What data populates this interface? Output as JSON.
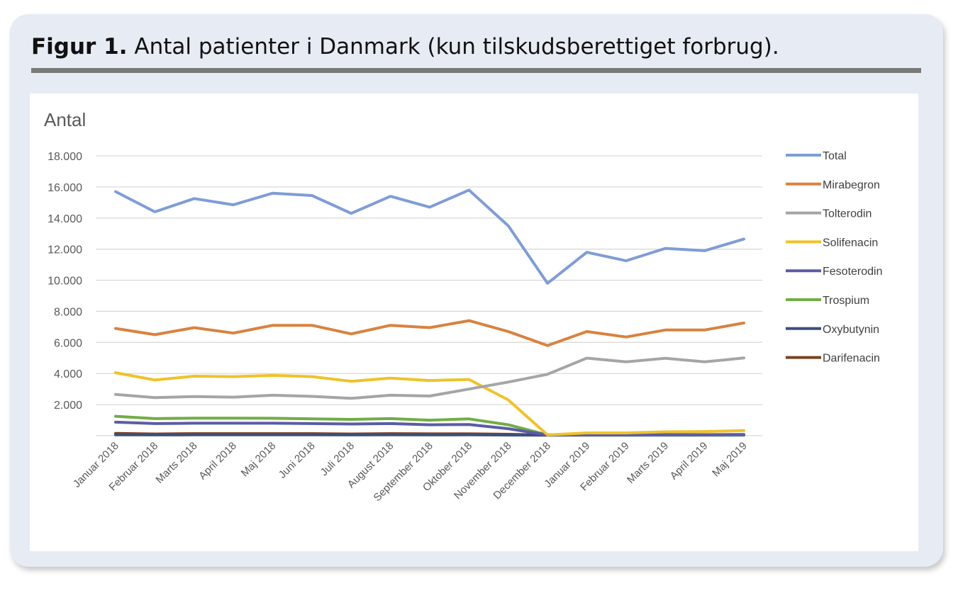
{
  "figure": {
    "label": "Figur 1.",
    "caption": "Antal patienter i Danmark (kun tilskudsberettiget forbrug)."
  },
  "colors": {
    "card_bg": "#e7ebf4",
    "rule": "#7a7a7a",
    "grid": "#d9d9d9"
  },
  "chart_data": {
    "type": "line",
    "ylabel": "Antal",
    "ylim": [
      0,
      18000
    ],
    "yticks": [
      0,
      2000,
      4000,
      6000,
      8000,
      10000,
      12000,
      14000,
      16000,
      18000
    ],
    "ytick_labels": [
      "",
      "2.000",
      "4.000",
      "6.000",
      "8.000",
      "10.000",
      "12.000",
      "14.000",
      "16.000",
      "18.000"
    ],
    "grid": true,
    "legend_position": "right",
    "categories": [
      "Januar 2018",
      "Februar 2018",
      "Marts 2018",
      "April 2018",
      "Maj 2018",
      "Juni 2018",
      "Juli 2018",
      "August 2018",
      "September 2018",
      "Oktober 2018",
      "November 2018",
      "December 2018",
      "Januar 2019",
      "Februar 2019",
      "Marts 2019",
      "April 2019",
      "Maj 2019"
    ],
    "series": [
      {
        "name": "Total",
        "color": "#7f9cd6",
        "values": [
          15700,
          14400,
          15250,
          14850,
          15600,
          15450,
          14300,
          15400,
          14700,
          15800,
          13500,
          9800,
          11800,
          11250,
          12050,
          11900,
          12650
        ]
      },
      {
        "name": "Mirabegron",
        "color": "#d9823f",
        "values": [
          6900,
          6500,
          6950,
          6600,
          7100,
          7100,
          6550,
          7100,
          6950,
          7400,
          6700,
          5800,
          6700,
          6350,
          6800,
          6800,
          7250
        ]
      },
      {
        "name": "Tolterodin",
        "color": "#a5a5a5",
        "values": [
          2650,
          2450,
          2520,
          2480,
          2600,
          2530,
          2400,
          2600,
          2550,
          3000,
          3450,
          3950,
          4990,
          4750,
          4980,
          4750,
          5000
        ]
      },
      {
        "name": "Solifenacin",
        "color": "#efc22b",
        "values": [
          4050,
          3580,
          3830,
          3800,
          3880,
          3800,
          3500,
          3700,
          3550,
          3620,
          2300,
          50,
          180,
          180,
          250,
          270,
          330
        ]
      },
      {
        "name": "Fesoterodin",
        "color": "#5b5ca6",
        "values": [
          870,
          780,
          800,
          800,
          800,
          780,
          750,
          780,
          700,
          720,
          450,
          50,
          60,
          60,
          70,
          70,
          80
        ]
      },
      {
        "name": "Trospium",
        "color": "#71ad47",
        "values": [
          1250,
          1100,
          1130,
          1130,
          1120,
          1080,
          1050,
          1100,
          1000,
          1080,
          700,
          50,
          60,
          60,
          60,
          60,
          60
        ]
      },
      {
        "name": "Oxybutynin",
        "color": "#3d4f7c",
        "values": [
          60,
          50,
          55,
          55,
          55,
          55,
          50,
          55,
          50,
          55,
          40,
          30,
          30,
          30,
          30,
          30,
          30
        ]
      },
      {
        "name": "Darifenacin",
        "color": "#7a4320",
        "values": [
          150,
          110,
          130,
          130,
          130,
          130,
          110,
          130,
          120,
          120,
          90,
          40,
          50,
          50,
          50,
          60,
          70
        ]
      }
    ]
  }
}
